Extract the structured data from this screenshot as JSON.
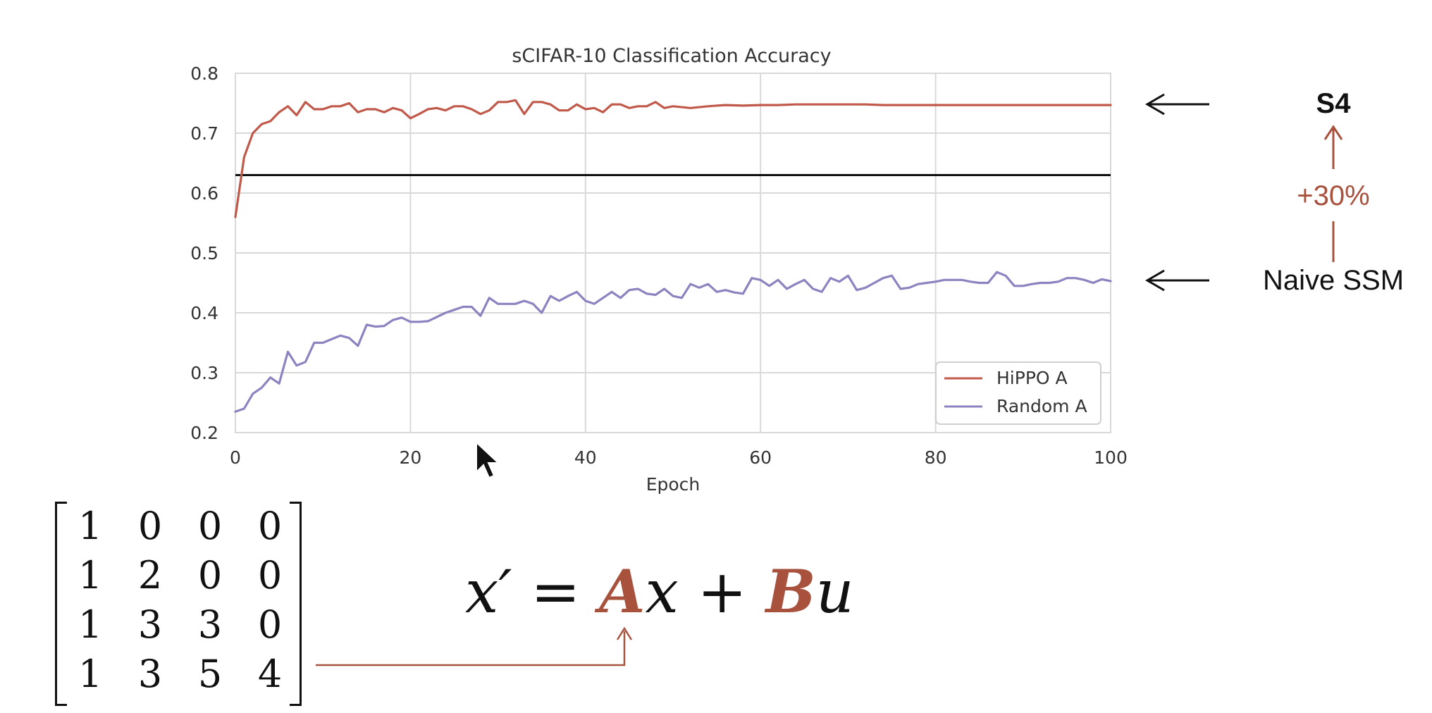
{
  "colors": {
    "hippo": "#c0594a",
    "random": "#8c83c0",
    "baseline": "#111111",
    "accent": "#a8523d",
    "grid": "#d9d9d9"
  },
  "chart_data": {
    "type": "line",
    "title": "sCIFAR-10 Classification Accuracy",
    "xlabel": "Epoch",
    "ylabel": "",
    "xlim": [
      0,
      100
    ],
    "ylim": [
      0.2,
      0.8
    ],
    "x_ticks": [
      "0",
      "20",
      "40",
      "60",
      "80",
      "100"
    ],
    "y_ticks": [
      "0.2",
      "0.3",
      "0.4",
      "0.5",
      "0.6",
      "0.7",
      "0.8"
    ],
    "grid": true,
    "legend_position": "lower-right",
    "baseline": 0.63,
    "series": [
      {
        "name": "HiPPO A",
        "color": "#c0594a",
        "x": [
          0,
          1,
          2,
          3,
          4,
          5,
          6,
          7,
          8,
          9,
          10,
          11,
          12,
          13,
          14,
          15,
          16,
          17,
          18,
          19,
          20,
          21,
          22,
          23,
          24,
          25,
          26,
          27,
          28,
          29,
          30,
          31,
          32,
          33,
          34,
          35,
          36,
          37,
          38,
          39,
          40,
          41,
          42,
          43,
          44,
          45,
          46,
          47,
          48,
          49,
          50,
          52,
          54,
          56,
          58,
          60,
          62,
          64,
          66,
          68,
          70,
          72,
          74,
          76,
          78,
          80,
          82,
          84,
          86,
          88,
          90,
          92,
          94,
          96,
          98,
          100
        ],
        "values": [
          0.56,
          0.66,
          0.7,
          0.715,
          0.72,
          0.735,
          0.745,
          0.73,
          0.752,
          0.74,
          0.74,
          0.745,
          0.745,
          0.75,
          0.735,
          0.74,
          0.74,
          0.735,
          0.742,
          0.738,
          0.725,
          0.732,
          0.74,
          0.742,
          0.738,
          0.745,
          0.745,
          0.74,
          0.732,
          0.738,
          0.752,
          0.752,
          0.755,
          0.732,
          0.752,
          0.752,
          0.748,
          0.738,
          0.738,
          0.748,
          0.74,
          0.742,
          0.735,
          0.748,
          0.748,
          0.742,
          0.745,
          0.745,
          0.752,
          0.742,
          0.745,
          0.742,
          0.745,
          0.747,
          0.746,
          0.747,
          0.747,
          0.748,
          0.748,
          0.748,
          0.748,
          0.748,
          0.747,
          0.747,
          0.747,
          0.747,
          0.747,
          0.747,
          0.747,
          0.747,
          0.747,
          0.747,
          0.747,
          0.747,
          0.747,
          0.747
        ]
      },
      {
        "name": "Random A",
        "color": "#8c83c0",
        "x": [
          0,
          1,
          2,
          3,
          4,
          5,
          6,
          7,
          8,
          9,
          10,
          11,
          12,
          13,
          14,
          15,
          16,
          17,
          18,
          19,
          20,
          21,
          22,
          23,
          24,
          25,
          26,
          27,
          28,
          29,
          30,
          31,
          32,
          33,
          34,
          35,
          36,
          37,
          38,
          39,
          40,
          41,
          42,
          43,
          44,
          45,
          46,
          47,
          48,
          49,
          50,
          51,
          52,
          53,
          54,
          55,
          56,
          57,
          58,
          59,
          60,
          61,
          62,
          63,
          64,
          65,
          66,
          67,
          68,
          69,
          70,
          71,
          72,
          73,
          74,
          75,
          76,
          77,
          78,
          79,
          80,
          81,
          82,
          83,
          84,
          85,
          86,
          87,
          88,
          89,
          90,
          91,
          92,
          93,
          94,
          95,
          96,
          97,
          98,
          99,
          100
        ],
        "values": [
          0.235,
          0.24,
          0.265,
          0.275,
          0.292,
          0.282,
          0.335,
          0.312,
          0.318,
          0.35,
          0.35,
          0.356,
          0.362,
          0.358,
          0.345,
          0.38,
          0.377,
          0.378,
          0.388,
          0.392,
          0.385,
          0.385,
          0.386,
          0.393,
          0.4,
          0.405,
          0.41,
          0.41,
          0.395,
          0.425,
          0.415,
          0.415,
          0.415,
          0.42,
          0.415,
          0.4,
          0.428,
          0.42,
          0.428,
          0.435,
          0.42,
          0.415,
          0.425,
          0.435,
          0.425,
          0.438,
          0.44,
          0.432,
          0.43,
          0.44,
          0.428,
          0.425,
          0.448,
          0.442,
          0.448,
          0.435,
          0.438,
          0.434,
          0.432,
          0.458,
          0.455,
          0.445,
          0.455,
          0.44,
          0.448,
          0.455,
          0.44,
          0.435,
          0.458,
          0.452,
          0.462,
          0.438,
          0.442,
          0.45,
          0.458,
          0.462,
          0.44,
          0.442,
          0.448,
          0.45,
          0.452,
          0.455,
          0.455,
          0.455,
          0.452,
          0.45,
          0.45,
          0.468,
          0.462,
          0.445,
          0.445,
          0.448,
          0.45,
          0.45,
          0.452,
          0.458,
          0.458,
          0.455,
          0.45,
          0.456,
          0.453
        ]
      }
    ]
  },
  "annotations": {
    "s4_label": "S4",
    "improvement": "+30%",
    "naive_label": "Naive SSM"
  },
  "matrix": {
    "rows": [
      [
        "1",
        "0",
        "0",
        "0"
      ],
      [
        "1",
        "2",
        "0",
        "0"
      ],
      [
        "1",
        "3",
        "3",
        "0"
      ],
      [
        "1",
        "3",
        "5",
        "4"
      ]
    ]
  },
  "equation": {
    "lhs": "x′",
    "equals": "=",
    "a": "A",
    "x": "x",
    "plus": "+",
    "b": "B",
    "u": "u"
  }
}
